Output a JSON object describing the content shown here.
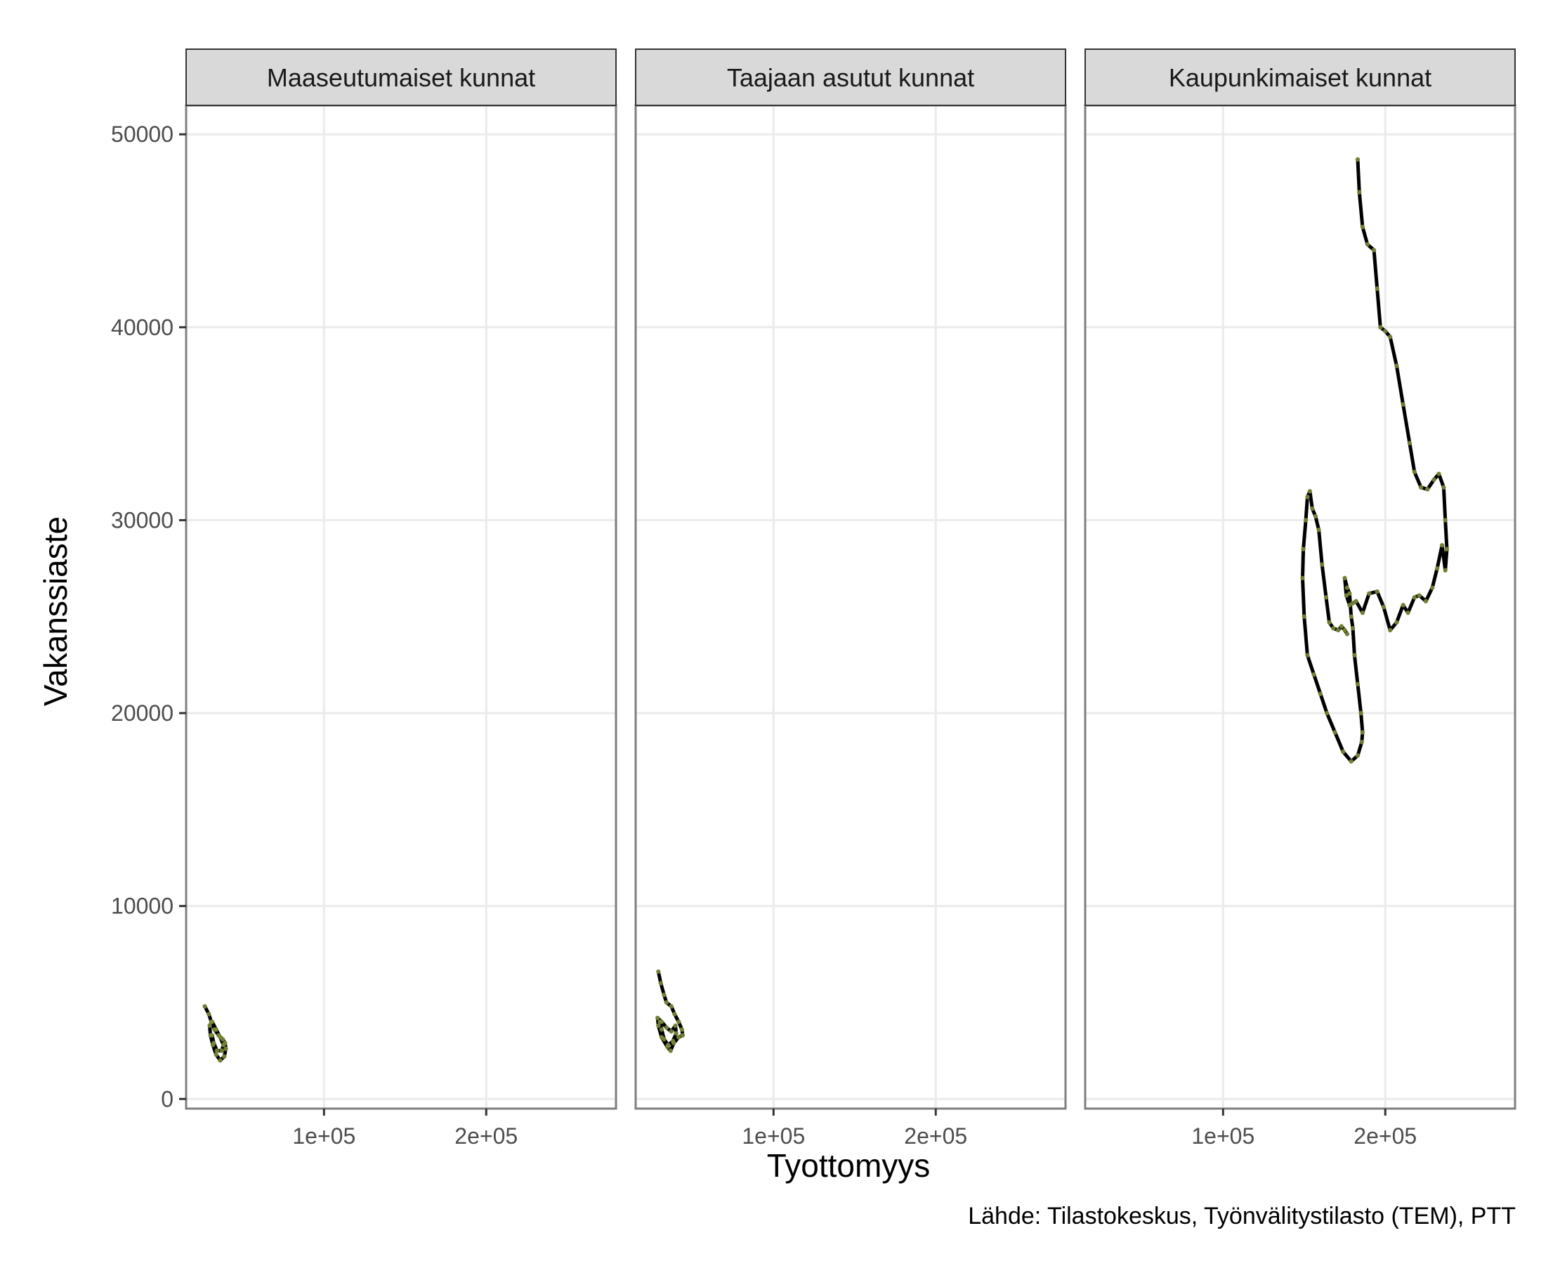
{
  "chart_data": {
    "type": "line",
    "xlabel": "Tyottomyys",
    "ylabel": "Vakanssiaste",
    "caption": "Lähde: Tilastokeskus, Työnvälitystilasto (TEM), PTT",
    "xlim": [
      15000,
      280000
    ],
    "ylim": [
      -500,
      51500
    ],
    "x_ticks": [
      100000,
      200000
    ],
    "x_tick_labels": [
      "1e+05",
      "2e+05"
    ],
    "y_ticks": [
      0,
      10000,
      20000,
      30000,
      40000,
      50000
    ],
    "y_tick_labels": [
      "0",
      "10000",
      "20000",
      "30000",
      "40000",
      "50000"
    ],
    "grid": true,
    "colors": {
      "path": "#000000",
      "points": "#7a8c3a",
      "strip_bg": "#d9d9d9",
      "panel_border": "#7f7f7f",
      "grid": "#ebebeb"
    },
    "panels": [
      {
        "title": "Maaseutumaiset kunnat",
        "points": [
          [
            26500,
            4800
          ],
          [
            29000,
            4400
          ],
          [
            30500,
            4000
          ],
          [
            32500,
            3600
          ],
          [
            35000,
            3300
          ],
          [
            37500,
            3100
          ],
          [
            39000,
            2900
          ],
          [
            39500,
            2600
          ],
          [
            38500,
            2200
          ],
          [
            36000,
            2000
          ],
          [
            33500,
            2300
          ],
          [
            31500,
            2800
          ],
          [
            30000,
            3300
          ],
          [
            29500,
            3800
          ],
          [
            31000,
            4000
          ],
          [
            33500,
            3600
          ],
          [
            36000,
            3200
          ],
          [
            38000,
            2800
          ],
          [
            37000,
            2500
          ],
          [
            34000,
            2500
          ],
          [
            32000,
            2900
          ],
          [
            31000,
            3300
          ]
        ]
      },
      {
        "title": "Taajaan asutut kunnat",
        "points": [
          [
            29000,
            6600
          ],
          [
            30500,
            6000
          ],
          [
            32500,
            5400
          ],
          [
            34000,
            5000
          ],
          [
            37000,
            4800
          ],
          [
            39000,
            4400
          ],
          [
            41500,
            4000
          ],
          [
            43500,
            3600
          ],
          [
            44000,
            3300
          ],
          [
            41500,
            3200
          ],
          [
            38500,
            2900
          ],
          [
            36500,
            2500
          ],
          [
            34500,
            2700
          ],
          [
            31000,
            3200
          ],
          [
            29000,
            3800
          ],
          [
            28500,
            4200
          ],
          [
            31000,
            4000
          ],
          [
            34000,
            3700
          ],
          [
            37000,
            3500
          ],
          [
            39500,
            3800
          ],
          [
            40000,
            3400
          ],
          [
            38000,
            3000
          ],
          [
            35000,
            2800
          ],
          [
            32500,
            3100
          ],
          [
            31000,
            3600
          ],
          [
            30000,
            4000
          ]
        ]
      },
      {
        "title": "Kaupunkimaiset kunnat",
        "points": [
          [
            183000,
            48700
          ],
          [
            184000,
            47000
          ],
          [
            186000,
            45200
          ],
          [
            189000,
            44300
          ],
          [
            193000,
            44000
          ],
          [
            195000,
            42000
          ],
          [
            197000,
            40000
          ],
          [
            200000,
            39800
          ],
          [
            203000,
            39500
          ],
          [
            207000,
            38000
          ],
          [
            211000,
            36000
          ],
          [
            215000,
            34000
          ],
          [
            218000,
            32500
          ],
          [
            222000,
            31700
          ],
          [
            226000,
            31600
          ],
          [
            230000,
            32100
          ],
          [
            233000,
            32400
          ],
          [
            236000,
            31700
          ],
          [
            237000,
            30000
          ],
          [
            238000,
            28500
          ],
          [
            237000,
            27400
          ],
          [
            235000,
            28700
          ],
          [
            232000,
            27500
          ],
          [
            229000,
            26500
          ],
          [
            225000,
            25800
          ],
          [
            221000,
            26100
          ],
          [
            218000,
            26000
          ],
          [
            214000,
            25200
          ],
          [
            211000,
            25600
          ],
          [
            207000,
            24700
          ],
          [
            203000,
            24300
          ],
          [
            199000,
            25500
          ],
          [
            195000,
            26300
          ],
          [
            190000,
            26200
          ],
          [
            186000,
            25200
          ],
          [
            182000,
            25800
          ],
          [
            180000,
            25700
          ],
          [
            178000,
            25600
          ],
          [
            176000,
            26100
          ],
          [
            175000,
            27000
          ],
          [
            176500,
            26500
          ],
          [
            178000,
            26200
          ],
          [
            179000,
            25000
          ],
          [
            180000,
            24400
          ],
          [
            181000,
            23000
          ],
          [
            183000,
            21500
          ],
          [
            185000,
            20000
          ],
          [
            186000,
            19000
          ],
          [
            185500,
            18500
          ],
          [
            183000,
            17800
          ],
          [
            179000,
            17500
          ],
          [
            174000,
            18000
          ],
          [
            169000,
            19000
          ],
          [
            164000,
            20000
          ],
          [
            160000,
            21000
          ],
          [
            156000,
            22000
          ],
          [
            152000,
            23000
          ],
          [
            150000,
            25000
          ],
          [
            149000,
            27000
          ],
          [
            149500,
            28500
          ],
          [
            151000,
            30000
          ],
          [
            152000,
            31200
          ],
          [
            153500,
            31500
          ],
          [
            155000,
            30600
          ],
          [
            157000,
            30200
          ],
          [
            159000,
            29500
          ],
          [
            161000,
            27700
          ],
          [
            163500,
            26000
          ],
          [
            165500,
            24700
          ],
          [
            168000,
            24400
          ],
          [
            171000,
            24300
          ],
          [
            173000,
            24500
          ],
          [
            175000,
            24300
          ],
          [
            176500,
            24100
          ]
        ]
      }
    ]
  }
}
